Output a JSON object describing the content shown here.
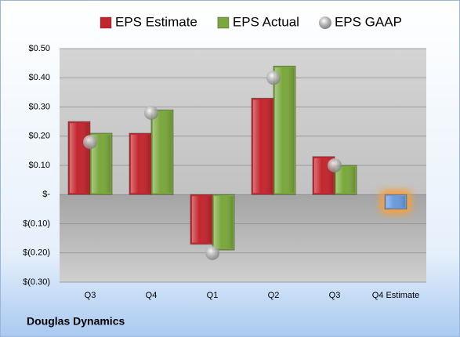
{
  "chart_data": {
    "type": "bar",
    "footer": "Douglas Dynamics",
    "categories": [
      "Q3",
      "Q4",
      "Q1",
      "Q2",
      "Q3",
      "Q4 Estimate"
    ],
    "series": [
      {
        "name": "EPS Estimate",
        "color": "#c4262e",
        "colors": [
          "#c4262e",
          "#c4262e",
          "#c4262e",
          "#c4262e",
          "#c4262e",
          "#6a9bdc"
        ],
        "values": [
          0.25,
          0.21,
          -0.17,
          0.33,
          0.13,
          -0.05
        ]
      },
      {
        "name": "EPS Actual",
        "color": "#7aa83c",
        "values": [
          0.21,
          0.29,
          -0.19,
          0.44,
          0.1,
          null
        ]
      },
      {
        "name": "EPS GAAP",
        "color": "#a8a8a8",
        "marker": "circle",
        "values": [
          0.18,
          0.28,
          -0.2,
          0.4,
          0.1,
          null
        ]
      }
    ],
    "ylim": [
      -0.3,
      0.5
    ],
    "yticks": [
      {
        "value": 0.5,
        "label": "$0.50"
      },
      {
        "value": 0.4,
        "label": "$0.40"
      },
      {
        "value": 0.3,
        "label": "$0.30"
      },
      {
        "value": 0.2,
        "label": "$0.20"
      },
      {
        "value": 0.1,
        "label": "$0.10"
      },
      {
        "value": 0,
        "label": "$-"
      },
      {
        "value": -0.1,
        "label": "$(0.10)"
      },
      {
        "value": -0.2,
        "label": "$(0.20)"
      },
      {
        "value": -0.3,
        "label": "$(0.30)"
      }
    ],
    "grid": true
  }
}
